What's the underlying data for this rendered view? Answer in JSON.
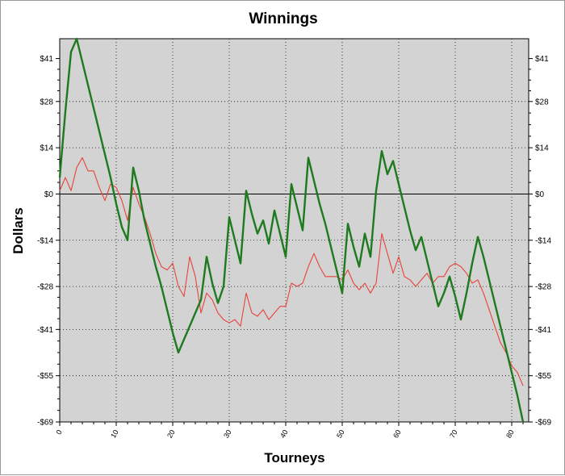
{
  "chart_data": {
    "type": "line",
    "title": "Winnings",
    "xlabel": "Tourneys",
    "ylabel": "Dollars",
    "xlim": [
      0,
      83
    ],
    "ylim": [
      -69,
      47
    ],
    "y_ticks": [
      41,
      28,
      14,
      0,
      -14,
      -28,
      -41,
      -55,
      -69
    ],
    "y_tick_labels": [
      "$41",
      "$28",
      "$14",
      "$0",
      "-$14",
      "-$28",
      "-$41",
      "-$55",
      "-$69"
    ],
    "x_ticks": [
      0,
      10,
      20,
      30,
      40,
      50,
      60,
      70,
      80
    ],
    "x_tick_labels": [
      "0",
      "10",
      "20",
      "30",
      "40",
      "50",
      "60",
      "70",
      "80"
    ],
    "grid": true,
    "background": "#d3d3d3",
    "series": [
      {
        "color": "#1e7a1e",
        "points": [
          [
            0,
            5
          ],
          [
            1,
            25
          ],
          [
            2,
            43
          ],
          [
            3,
            47
          ],
          [
            4,
            40
          ],
          [
            5,
            33
          ],
          [
            6,
            26
          ],
          [
            7,
            19
          ],
          [
            8,
            12
          ],
          [
            9,
            5
          ],
          [
            10,
            -3
          ],
          [
            11,
            -10
          ],
          [
            12,
            -14
          ],
          [
            13,
            8
          ],
          [
            14,
            1
          ],
          [
            15,
            -8
          ],
          [
            16,
            -15
          ],
          [
            17,
            -22
          ],
          [
            18,
            -28
          ],
          [
            19,
            -35
          ],
          [
            20,
            -42
          ],
          [
            21,
            -48
          ],
          [
            22,
            -44
          ],
          [
            23,
            -40
          ],
          [
            24,
            -36
          ],
          [
            25,
            -32
          ],
          [
            26,
            -19
          ],
          [
            27,
            -27
          ],
          [
            28,
            -33
          ],
          [
            29,
            -28
          ],
          [
            30,
            -7
          ],
          [
            31,
            -14
          ],
          [
            32,
            -21
          ],
          [
            33,
            1
          ],
          [
            34,
            -6
          ],
          [
            35,
            -12
          ],
          [
            36,
            -8
          ],
          [
            37,
            -15
          ],
          [
            38,
            -5
          ],
          [
            39,
            -12
          ],
          [
            40,
            -19
          ],
          [
            41,
            3
          ],
          [
            42,
            -4
          ],
          [
            43,
            -11
          ],
          [
            44,
            11
          ],
          [
            45,
            4
          ],
          [
            46,
            -3
          ],
          [
            47,
            -9
          ],
          [
            48,
            -16
          ],
          [
            49,
            -23
          ],
          [
            50,
            -30
          ],
          [
            51,
            -9
          ],
          [
            52,
            -16
          ],
          [
            53,
            -22
          ],
          [
            54,
            -12
          ],
          [
            55,
            -19
          ],
          [
            56,
            1
          ],
          [
            57,
            13
          ],
          [
            58,
            6
          ],
          [
            59,
            10
          ],
          [
            60,
            3
          ],
          [
            61,
            -4
          ],
          [
            62,
            -11
          ],
          [
            63,
            -17
          ],
          [
            64,
            -13
          ],
          [
            65,
            -20
          ],
          [
            66,
            -27
          ],
          [
            67,
            -34
          ],
          [
            68,
            -30
          ],
          [
            69,
            -25
          ],
          [
            70,
            -31
          ],
          [
            71,
            -38
          ],
          [
            72,
            -30
          ],
          [
            73,
            -21
          ],
          [
            74,
            -13
          ],
          [
            75,
            -19
          ],
          [
            76,
            -26
          ],
          [
            77,
            -33
          ],
          [
            78,
            -40
          ],
          [
            79,
            -47
          ],
          [
            80,
            -54
          ],
          [
            81,
            -61
          ],
          [
            82,
            -69
          ]
        ]
      },
      {
        "color": "#e8433a",
        "points": [
          [
            0,
            1
          ],
          [
            1,
            5
          ],
          [
            2,
            1
          ],
          [
            3,
            8
          ],
          [
            4,
            11
          ],
          [
            5,
            7
          ],
          [
            6,
            7
          ],
          [
            7,
            2
          ],
          [
            8,
            -2
          ],
          [
            9,
            3
          ],
          [
            10,
            2
          ],
          [
            11,
            -2
          ],
          [
            12,
            -8
          ],
          [
            13,
            2
          ],
          [
            14,
            -3
          ],
          [
            15,
            -7
          ],
          [
            16,
            -12
          ],
          [
            17,
            -18
          ],
          [
            18,
            -22
          ],
          [
            19,
            -23
          ],
          [
            20,
            -21
          ],
          [
            21,
            -28
          ],
          [
            22,
            -31
          ],
          [
            23,
            -19
          ],
          [
            24,
            -25
          ],
          [
            25,
            -36
          ],
          [
            26,
            -30
          ],
          [
            27,
            -32
          ],
          [
            28,
            -36
          ],
          [
            29,
            -38
          ],
          [
            30,
            -39
          ],
          [
            31,
            -38
          ],
          [
            32,
            -40
          ],
          [
            33,
            -30
          ],
          [
            34,
            -36
          ],
          [
            35,
            -37
          ],
          [
            36,
            -35
          ],
          [
            37,
            -38
          ],
          [
            38,
            -36
          ],
          [
            39,
            -34
          ],
          [
            40,
            -34
          ],
          [
            41,
            -27
          ],
          [
            42,
            -28
          ],
          [
            43,
            -27
          ],
          [
            44,
            -22
          ],
          [
            45,
            -18
          ],
          [
            46,
            -22
          ],
          [
            47,
            -25
          ],
          [
            48,
            -25
          ],
          [
            49,
            -25
          ],
          [
            50,
            -26
          ],
          [
            51,
            -23
          ],
          [
            52,
            -27
          ],
          [
            53,
            -29
          ],
          [
            54,
            -27
          ],
          [
            55,
            -30
          ],
          [
            56,
            -27
          ],
          [
            57,
            -12
          ],
          [
            58,
            -18
          ],
          [
            59,
            -24
          ],
          [
            60,
            -19
          ],
          [
            61,
            -25
          ],
          [
            62,
            -26
          ],
          [
            63,
            -28
          ],
          [
            64,
            -26
          ],
          [
            65,
            -24
          ],
          [
            66,
            -27
          ],
          [
            67,
            -25
          ],
          [
            68,
            -25
          ],
          [
            69,
            -22
          ],
          [
            70,
            -21
          ],
          [
            71,
            -22
          ],
          [
            72,
            -24
          ],
          [
            73,
            -27
          ],
          [
            74,
            -26
          ],
          [
            75,
            -30
          ],
          [
            76,
            -35
          ],
          [
            77,
            -40
          ],
          [
            78,
            -45
          ],
          [
            79,
            -48
          ],
          [
            80,
            -52
          ],
          [
            81,
            -54
          ],
          [
            82,
            -58
          ]
        ]
      }
    ]
  }
}
